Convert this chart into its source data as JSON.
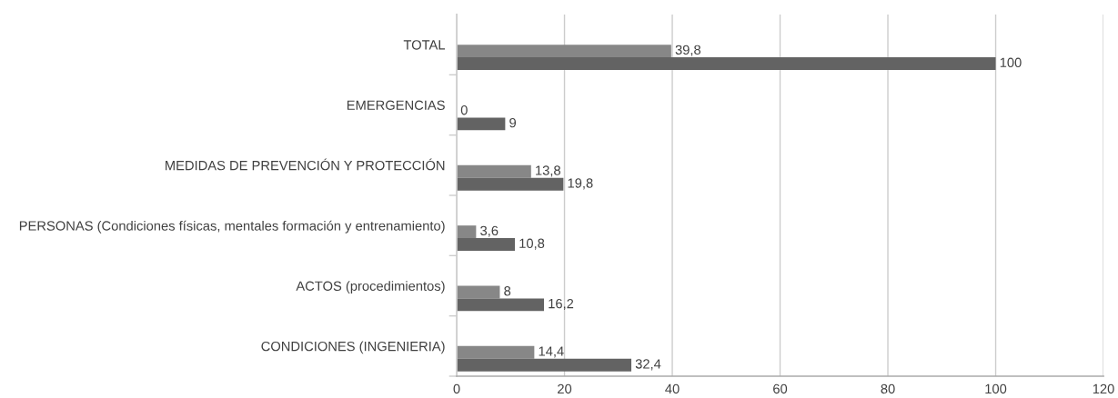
{
  "chart_data": {
    "type": "bar",
    "orientation": "horizontal",
    "categories": [
      "TOTAL",
      "EMERGENCIAS",
      "MEDIDAS DE PREVENCIÓN Y PROTECCIÓN",
      "PERSONAS (Condiciones físicas, mentales formación y entrenamiento)",
      "ACTOS (procedimientos)",
      "CONDICIONES (INGENIERIA)"
    ],
    "series": [
      {
        "color": "#878787",
        "values": [
          39.8,
          0,
          13.8,
          3.6,
          8,
          14.4
        ],
        "value_labels": [
          "39,8",
          "0",
          "13,8",
          "3,6",
          "8",
          "14,4"
        ]
      },
      {
        "color": "#636363",
        "values": [
          100,
          9,
          19.8,
          10.8,
          16.2,
          32.4
        ],
        "value_labels": [
          "100",
          "9",
          "19,8",
          "10,8",
          "16,2",
          "32,4"
        ]
      }
    ],
    "xlim": [
      0,
      120
    ],
    "xticks": [
      0,
      20,
      40,
      60,
      80,
      100,
      120
    ],
    "grid": "x"
  }
}
